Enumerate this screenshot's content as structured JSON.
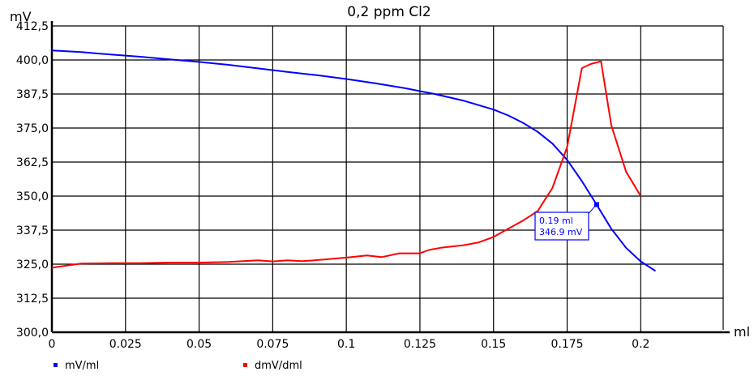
{
  "chart_data": {
    "type": "line",
    "title": "0,2 ppm Cl2",
    "xlabel": "ml",
    "ylabel": "mV",
    "xlim": [
      0,
      0.228
    ],
    "ylim": [
      300,
      412.5
    ],
    "xticks": [
      0,
      0.025,
      0.05,
      0.075,
      0.1,
      0.125,
      0.15,
      0.175,
      0.2
    ],
    "xtick_labels": [
      "0",
      "0.025",
      "0.05",
      "0.075",
      "0.1",
      "0.125",
      "0.15",
      "0.175",
      "0.2"
    ],
    "yticks": [
      300,
      312.5,
      325,
      337.5,
      350,
      362.5,
      375,
      387.5,
      400,
      412.5
    ],
    "ytick_labels": [
      "300,0",
      "312,5",
      "325,0",
      "337,5",
      "350,0",
      "362,5",
      "375,0",
      "387,5",
      "400,0",
      "412,5"
    ],
    "grid": true,
    "legend_position": "bottom-left",
    "series": [
      {
        "name": "mV/ml",
        "color": "#0000ff",
        "x": [
          0,
          0.01,
          0.02,
          0.03,
          0.04,
          0.05,
          0.06,
          0.07,
          0.08,
          0.09,
          0.1,
          0.11,
          0.12,
          0.13,
          0.14,
          0.15,
          0.155,
          0.16,
          0.165,
          0.17,
          0.175,
          0.18,
          0.185,
          0.19,
          0.195,
          0.2,
          0.205
        ],
        "values": [
          403.5,
          402.9,
          402.0,
          401.2,
          400.2,
          399.3,
          398.2,
          396.9,
          395.6,
          394.4,
          393.0,
          391.4,
          389.6,
          387.5,
          385.0,
          381.8,
          379.6,
          376.9,
          373.6,
          369.3,
          363.3,
          355.5,
          346.9,
          338.0,
          331.0,
          326.0,
          322.5
        ]
      },
      {
        "name": "dmV/dml",
        "color": "#ff0000",
        "x": [
          0,
          0.005,
          0.01,
          0.02,
          0.03,
          0.04,
          0.05,
          0.06,
          0.065,
          0.07,
          0.075,
          0.08,
          0.085,
          0.09,
          0.1,
          0.107,
          0.112,
          0.118,
          0.125,
          0.128,
          0.132,
          0.14,
          0.145,
          0.15,
          0.155,
          0.16,
          0.165,
          0.17,
          0.175,
          0.18,
          0.183,
          0.1865,
          0.19,
          0.195,
          0.2
        ],
        "values": [
          323.7,
          324.5,
          325.2,
          325.4,
          325.4,
          325.6,
          325.6,
          325.8,
          326.1,
          326.4,
          326.0,
          326.4,
          326.1,
          326.5,
          327.4,
          328.2,
          327.6,
          329.0,
          329.0,
          330.2,
          331.0,
          332.0,
          333.0,
          335.0,
          338.0,
          341.0,
          344.5,
          353.0,
          368.0,
          397.0,
          398.5,
          399.5,
          376.0,
          359.0,
          350.0
        ]
      }
    ],
    "annotation": {
      "x": 0.185,
      "y": 346.9,
      "series": "mV/ml",
      "lines": [
        "0.19 ml",
        "346.9 mV"
      ]
    }
  }
}
